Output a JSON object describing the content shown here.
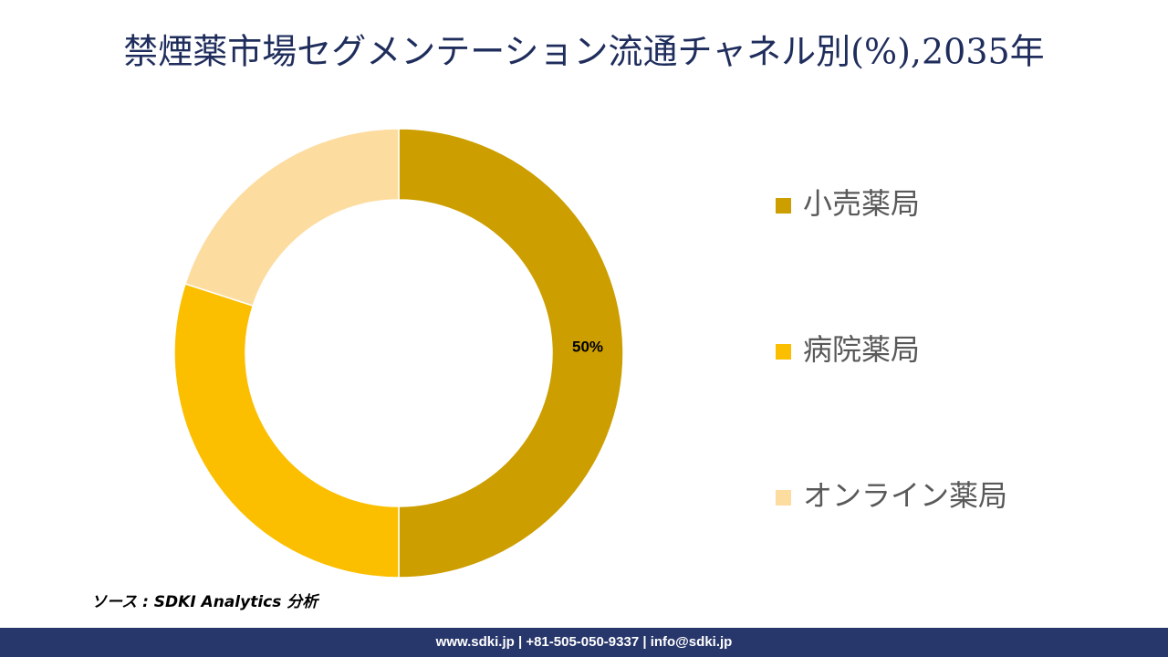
{
  "chart_data": {
    "type": "donut",
    "title": "禁煙薬市場セグメンテーション流通チャネル別(%),2035年",
    "categories": [
      "小売薬局",
      "病院薬局",
      "オンライン薬局"
    ],
    "values": [
      50,
      30,
      20
    ],
    "value_labels": [
      "50%",
      null,
      null
    ],
    "colors": [
      "#cc9e00",
      "#fbbf00",
      "#fddca0"
    ],
    "legend": "right"
  },
  "source": "ソース : SDKI Analytics 分析",
  "footer": "www.sdki.jp | +81-505-050-9337 | info@sdki.jp"
}
